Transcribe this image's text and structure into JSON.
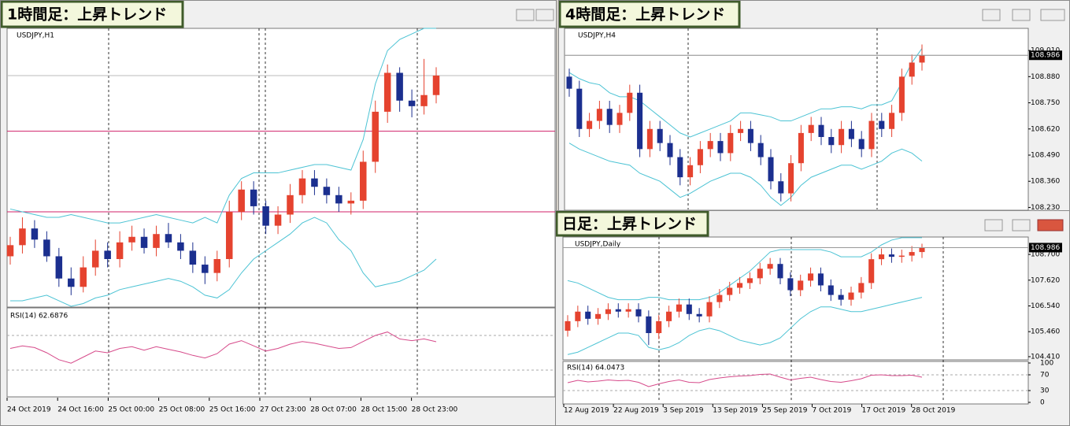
{
  "chart_data": [
    {
      "type": "candlestick",
      "window_title": "1時間足：上昇トレンド",
      "symbol": "USDJPY,H1",
      "ylim": [
        108.1,
        109.1
      ],
      "candles": {
        "open": [
          108.28,
          108.32,
          108.38,
          108.34,
          108.28,
          108.2,
          108.17,
          108.24,
          108.3,
          108.27,
          108.33,
          108.35,
          108.31,
          108.36,
          108.33,
          108.3,
          108.25,
          108.22,
          108.27,
          108.44,
          108.52,
          108.46,
          108.39,
          108.43,
          108.5,
          108.56,
          108.53,
          108.5,
          108.47,
          108.48,
          108.62,
          108.8,
          108.94,
          108.84,
          108.82,
          108.86
        ],
        "high": [
          108.35,
          108.42,
          108.41,
          108.37,
          108.31,
          108.24,
          108.28,
          108.34,
          108.33,
          108.37,
          108.39,
          108.38,
          108.39,
          108.4,
          108.36,
          108.33,
          108.28,
          108.3,
          108.48,
          108.55,
          108.55,
          108.48,
          108.46,
          108.54,
          108.59,
          108.59,
          108.56,
          108.53,
          108.51,
          108.66,
          108.84,
          108.97,
          108.96,
          108.88,
          108.99,
          108.96
        ],
        "low": [
          108.25,
          108.29,
          108.31,
          108.26,
          108.17,
          108.14,
          108.15,
          108.21,
          108.24,
          108.24,
          108.3,
          108.29,
          108.28,
          108.31,
          108.27,
          108.22,
          108.18,
          108.19,
          108.24,
          108.41,
          108.43,
          108.36,
          108.36,
          108.4,
          108.47,
          108.5,
          108.47,
          108.44,
          108.43,
          108.45,
          108.58,
          108.76,
          108.8,
          108.78,
          108.79,
          108.83
        ],
        "close": [
          108.32,
          108.38,
          108.34,
          108.28,
          108.2,
          108.17,
          108.24,
          108.3,
          108.27,
          108.33,
          108.35,
          108.31,
          108.36,
          108.33,
          108.3,
          108.25,
          108.22,
          108.27,
          108.44,
          108.52,
          108.46,
          108.39,
          108.43,
          108.5,
          108.56,
          108.53,
          108.5,
          108.47,
          108.48,
          108.62,
          108.8,
          108.94,
          108.84,
          108.82,
          108.86,
          108.93
        ]
      },
      "upper_band": [
        108.45,
        108.44,
        108.43,
        108.42,
        108.42,
        108.43,
        108.42,
        108.41,
        108.4,
        108.4,
        108.41,
        108.42,
        108.43,
        108.42,
        108.41,
        108.4,
        108.42,
        108.4,
        108.5,
        108.56,
        108.58,
        108.58,
        108.58,
        108.59,
        108.6,
        108.61,
        108.61,
        108.6,
        108.59,
        108.7,
        108.9,
        109.02,
        109.06,
        109.08,
        109.1,
        109.1
      ],
      "lower_band": [
        108.12,
        108.12,
        108.13,
        108.14,
        108.12,
        108.1,
        108.11,
        108.13,
        108.14,
        108.16,
        108.17,
        108.18,
        108.19,
        108.2,
        108.19,
        108.17,
        108.14,
        108.13,
        108.16,
        108.22,
        108.27,
        108.3,
        108.33,
        108.36,
        108.4,
        108.42,
        108.4,
        108.34,
        108.3,
        108.22,
        108.17,
        108.18,
        108.19,
        108.21,
        108.23,
        108.27
      ],
      "levels": [
        108.73,
        108.44
      ],
      "rsi": {
        "label": "RSI(14) 62.6876",
        "ylim": [
          0,
          100
        ],
        "values": [
          55,
          58,
          56,
          50,
          42,
          38,
          45,
          52,
          50,
          55,
          57,
          53,
          57,
          54,
          51,
          47,
          44,
          49,
          60,
          64,
          58,
          52,
          55,
          60,
          63,
          61,
          58,
          55,
          56,
          63,
          70,
          74,
          66,
          64,
          66,
          62.6876
        ]
      },
      "x_labels": [
        "24 Oct 2019",
        "24 Oct 16:00",
        "25 Oct 00:00",
        "25 Oct 08:00",
        "25 Oct 16:00",
        "27 Oct 23:00",
        "28 Oct 07:00",
        "28 Oct 15:00",
        "28 Oct 23:00"
      ]
    },
    {
      "type": "candlestick",
      "window_title": "4時間足：上昇トレンド",
      "symbol": "USDJPY,H4",
      "ylim": [
        108.22,
        109.12
      ],
      "yticks": [
        {
          "value": 109.01,
          "label": "109.010"
        },
        {
          "value": 108.88,
          "label": "108.880"
        },
        {
          "value": 108.75,
          "label": "108.750"
        },
        {
          "value": 108.62,
          "label": "108.620"
        },
        {
          "value": 108.49,
          "label": "108.490"
        },
        {
          "value": 108.36,
          "label": "108.360"
        },
        {
          "value": 108.23,
          "label": "108.230"
        }
      ],
      "current_price": 108.986,
      "candles": {
        "open": [
          108.88,
          108.82,
          108.62,
          108.66,
          108.72,
          108.64,
          108.7,
          108.8,
          108.52,
          108.62,
          108.55,
          108.48,
          108.38,
          108.44,
          108.52,
          108.56,
          108.5,
          108.6,
          108.62,
          108.55,
          108.48,
          108.36,
          108.3,
          108.45,
          108.6,
          108.64,
          108.58,
          108.54,
          108.62,
          108.57,
          108.52,
          108.66,
          108.62,
          108.7,
          108.88,
          108.95
        ],
        "high": [
          108.92,
          108.86,
          108.7,
          108.76,
          108.76,
          108.74,
          108.84,
          108.84,
          108.66,
          108.66,
          108.59,
          108.52,
          108.48,
          108.56,
          108.6,
          108.6,
          108.64,
          108.66,
          108.66,
          108.59,
          108.52,
          108.4,
          108.49,
          108.64,
          108.68,
          108.68,
          108.62,
          108.66,
          108.66,
          108.61,
          108.7,
          108.7,
          108.74,
          108.92,
          108.99,
          109.04
        ],
        "low": [
          108.78,
          108.58,
          108.58,
          108.62,
          108.6,
          108.6,
          108.66,
          108.48,
          108.48,
          108.51,
          108.44,
          108.34,
          108.34,
          108.4,
          108.48,
          108.46,
          108.46,
          108.56,
          108.51,
          108.44,
          108.32,
          108.26,
          108.26,
          108.41,
          108.56,
          108.54,
          108.5,
          108.5,
          108.53,
          108.48,
          108.48,
          108.58,
          108.58,
          108.66,
          108.84,
          108.91
        ],
        "close": [
          108.82,
          108.62,
          108.66,
          108.72,
          108.64,
          108.7,
          108.8,
          108.52,
          108.62,
          108.55,
          108.48,
          108.38,
          108.44,
          108.52,
          108.56,
          108.5,
          108.6,
          108.62,
          108.55,
          108.48,
          108.36,
          108.3,
          108.45,
          108.6,
          108.64,
          108.58,
          108.54,
          108.62,
          108.57,
          108.52,
          108.66,
          108.62,
          108.7,
          108.88,
          108.95,
          108.986
        ]
      },
      "upper_band": [
        108.9,
        108.87,
        108.85,
        108.84,
        108.8,
        108.78,
        108.78,
        108.76,
        108.72,
        108.68,
        108.64,
        108.6,
        108.58,
        108.6,
        108.62,
        108.64,
        108.66,
        108.7,
        108.7,
        108.69,
        108.68,
        108.66,
        108.66,
        108.68,
        108.7,
        108.72,
        108.72,
        108.73,
        108.73,
        108.72,
        108.74,
        108.74,
        108.76,
        108.85,
        108.95,
        109.02
      ],
      "lower_band": [
        108.55,
        108.52,
        108.5,
        108.48,
        108.46,
        108.45,
        108.44,
        108.4,
        108.38,
        108.36,
        108.32,
        108.28,
        108.3,
        108.33,
        108.36,
        108.38,
        108.4,
        108.4,
        108.38,
        108.34,
        108.28,
        108.24,
        108.28,
        108.34,
        108.38,
        108.4,
        108.42,
        108.44,
        108.44,
        108.42,
        108.44,
        108.46,
        108.5,
        108.52,
        108.5,
        108.46
      ]
    },
    {
      "type": "candlestick",
      "window_title": "日足：上昇トレンド",
      "symbol": "USDJPY,Daily",
      "ylim": [
        104.31,
        109.43
      ],
      "yticks": [
        {
          "value": 108.7,
          "label": "108.700"
        },
        {
          "value": 107.62,
          "label": "107.620"
        },
        {
          "value": 106.54,
          "label": "106.540"
        },
        {
          "value": 105.46,
          "label": "105.460"
        },
        {
          "value": 104.41,
          "label": "104.410"
        }
      ],
      "current_price": 108.986,
      "candles": {
        "open": [
          105.5,
          105.9,
          106.3,
          106.0,
          106.2,
          106.4,
          106.3,
          106.4,
          106.1,
          105.4,
          105.9,
          106.3,
          106.6,
          106.2,
          106.1,
          106.7,
          107.0,
          107.3,
          107.5,
          107.7,
          108.1,
          108.3,
          107.7,
          107.2,
          107.6,
          107.9,
          107.4,
          107.0,
          106.8,
          107.1,
          107.5,
          108.5,
          108.7,
          108.6,
          108.65,
          108.8
        ],
        "high": [
          106.15,
          106.55,
          106.55,
          106.45,
          106.65,
          106.65,
          106.65,
          106.65,
          106.35,
          106.15,
          106.55,
          106.85,
          106.85,
          106.45,
          106.95,
          107.25,
          107.55,
          107.75,
          107.95,
          108.35,
          108.55,
          108.55,
          107.95,
          107.85,
          108.15,
          108.15,
          107.65,
          107.25,
          107.35,
          107.75,
          108.75,
          108.95,
          108.95,
          108.9,
          109.05,
          109.15
        ],
        "low": [
          105.25,
          105.65,
          105.75,
          105.75,
          105.95,
          106.05,
          106.05,
          105.85,
          104.9,
          105.15,
          105.65,
          106.05,
          105.95,
          105.85,
          105.85,
          106.45,
          106.75,
          107.05,
          107.25,
          107.45,
          107.85,
          107.45,
          106.95,
          106.95,
          107.35,
          107.15,
          106.75,
          106.55,
          106.55,
          106.85,
          107.25,
          108.25,
          108.35,
          108.35,
          108.4,
          108.55
        ],
        "close": [
          105.9,
          106.3,
          106.0,
          106.2,
          106.4,
          106.3,
          106.4,
          106.1,
          105.4,
          105.9,
          106.3,
          106.6,
          106.2,
          106.1,
          106.7,
          107.0,
          107.3,
          107.5,
          107.7,
          108.1,
          108.3,
          107.7,
          107.2,
          107.6,
          107.9,
          107.4,
          107.0,
          106.8,
          107.1,
          107.5,
          108.5,
          108.7,
          108.6,
          108.65,
          108.8,
          108.986
        ]
      },
      "upper_band": [
        107.6,
        107.5,
        107.3,
        107.1,
        106.9,
        106.8,
        106.8,
        106.8,
        106.9,
        106.9,
        106.8,
        106.8,
        106.8,
        106.8,
        106.9,
        107.1,
        107.4,
        107.7,
        108.0,
        108.4,
        108.8,
        108.9,
        108.9,
        108.9,
        108.9,
        108.9,
        108.8,
        108.6,
        108.6,
        108.6,
        108.8,
        109.1,
        109.3,
        109.4,
        109.4,
        109.4
      ],
      "lower_band": [
        104.5,
        104.6,
        104.8,
        105.0,
        105.2,
        105.4,
        105.4,
        105.3,
        104.8,
        104.7,
        104.8,
        105.0,
        105.3,
        105.5,
        105.6,
        105.5,
        105.3,
        105.1,
        105.0,
        104.9,
        105.0,
        105.2,
        105.6,
        106.0,
        106.3,
        106.5,
        106.5,
        106.4,
        106.3,
        106.3,
        106.4,
        106.5,
        106.6,
        106.7,
        106.8,
        106.9
      ],
      "rsi": {
        "label": "RSI(14) 64.0473",
        "ylim": [
          0,
          100
        ],
        "yticks": [
          100,
          70,
          30,
          0
        ],
        "values": [
          50,
          56,
          52,
          54,
          57,
          55,
          56,
          51,
          40,
          47,
          53,
          57,
          51,
          50,
          58,
          62,
          65,
          67,
          68,
          71,
          72,
          64,
          57,
          61,
          64,
          58,
          53,
          51,
          55,
          60,
          69,
          70,
          68,
          68,
          69,
          64.0473
        ]
      },
      "x_labels": [
        "12 Aug 2019",
        "22 Aug 2019",
        "3 Sep 2019",
        "13 Sep 2019",
        "25 Sep 2019",
        "7 Oct 2019",
        "17 Oct 2019",
        "28 Oct 2019"
      ]
    }
  ]
}
